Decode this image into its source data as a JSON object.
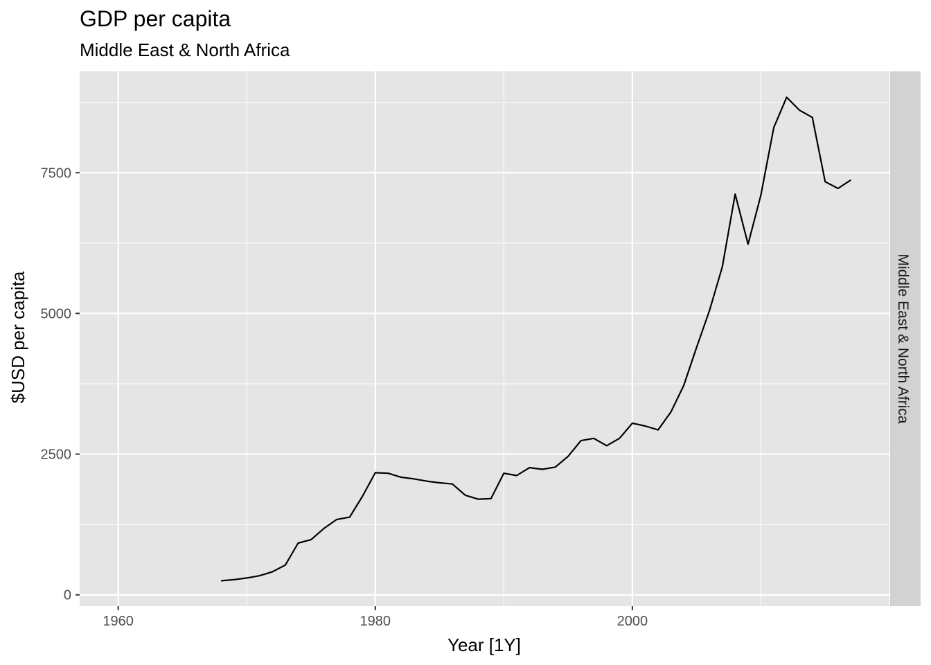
{
  "chart_data": {
    "type": "line",
    "title": "GDP per capita",
    "subtitle": "Middle East & North Africa",
    "xlabel": "Year [1Y]",
    "ylabel": "$USD per capita",
    "facet_label": "Middle East & North Africa",
    "xlim": [
      1957,
      2020
    ],
    "ylim": [
      -200,
      9300
    ],
    "x_ticks": [
      1960,
      1980,
      2000
    ],
    "x_minor_ticks": [
      1970,
      1990,
      2010
    ],
    "y_ticks": [
      0,
      2500,
      5000,
      7500
    ],
    "y_minor_ticks": [
      1250,
      3750,
      6250,
      8750
    ],
    "grid": true,
    "panel_color": "#e5e5e5",
    "strip_color": "#d2d2d2",
    "line_color": "#000000",
    "series": [
      {
        "x": [
          1968,
          1969,
          1970,
          1971,
          1972,
          1973,
          1974,
          1975,
          1976,
          1977,
          1978,
          1979,
          1980,
          1981,
          1982,
          1983,
          1984,
          1985,
          1986,
          1987,
          1988,
          1989,
          1990,
          1991,
          1992,
          1993,
          1994,
          1995,
          1996,
          1997,
          1998,
          1999,
          2000,
          2001,
          2002,
          2003,
          2004,
          2005,
          2006,
          2007,
          2008,
          2009,
          2010,
          2011,
          2012,
          2013,
          2014,
          2015,
          2016,
          2017
        ],
        "y": [
          250,
          270,
          300,
          340,
          410,
          530,
          920,
          980,
          1180,
          1340,
          1380,
          1750,
          2170,
          2160,
          2090,
          2060,
          2020,
          1990,
          1970,
          1770,
          1700,
          1710,
          2160,
          2120,
          2260,
          2230,
          2270,
          2460,
          2740,
          2780,
          2650,
          2780,
          3050,
          3000,
          2930,
          3250,
          3720,
          4400,
          5050,
          5830,
          7120,
          6230,
          7100,
          8300,
          8840,
          8610,
          8480,
          7340,
          7220,
          7370
        ]
      }
    ]
  }
}
